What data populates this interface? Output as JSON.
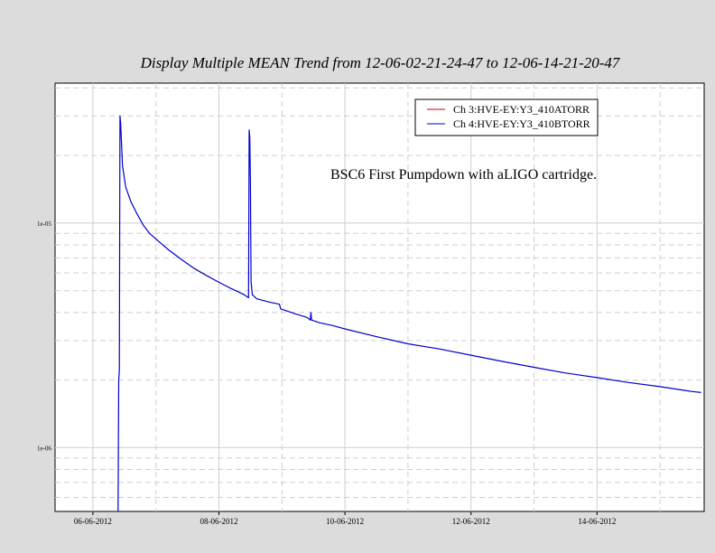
{
  "chart_data": {
    "type": "line",
    "title": "Display Multiple MEAN Trend from 12-06-02-21-24-47 to 12-06-14-21-20-47",
    "annotation": "BSC6 First Pumpdown with aLIGO cartridge.",
    "xlabel": "",
    "ylabel": "",
    "x_ticks": [
      "06-06-2012",
      "08-06-2012",
      "10-06-2012",
      "12-06-2012",
      "14-06-2012"
    ],
    "y_ticks": [
      "1e-05",
      "1e-06"
    ],
    "y_scale": "log",
    "ylim": [
      5.2e-07,
      4.2e-05
    ],
    "xlim_days_from_first_tick": [
      -0.6,
      9.7
    ],
    "legend_position": "top-right",
    "grid": true,
    "series": [
      {
        "name": "Ch 3:HVE-EY:Y3_410ATORR",
        "color": "#cc0000",
        "points": []
      },
      {
        "name": "Ch 4:HVE-EY:Y3_410BTORR",
        "color": "#0000cc",
        "points": [
          [
            0.4,
            5.2e-07
          ],
          [
            0.41,
            2e-06
          ],
          [
            0.42,
            2.2e-06
          ],
          [
            0.43,
            3e-05
          ],
          [
            0.44,
            2.8e-05
          ],
          [
            0.47,
            1.8e-05
          ],
          [
            0.52,
            1.45e-05
          ],
          [
            0.6,
            1.25e-05
          ],
          [
            0.7,
            1.1e-05
          ],
          [
            0.8,
            9.8e-06
          ],
          [
            0.9,
            9e-06
          ],
          [
            1.0,
            8.5e-06
          ],
          [
            1.2,
            7.6e-06
          ],
          [
            1.4,
            6.9e-06
          ],
          [
            1.6,
            6.3e-06
          ],
          [
            1.8,
            5.85e-06
          ],
          [
            2.0,
            5.45e-06
          ],
          [
            2.2,
            5.1e-06
          ],
          [
            2.4,
            4.8e-06
          ],
          [
            2.47,
            4.65e-06
          ],
          [
            2.48,
            2.6e-05
          ],
          [
            2.49,
            2.4e-05
          ],
          [
            2.5,
            1.5e-05
          ],
          [
            2.51,
            5.5e-06
          ],
          [
            2.53,
            4.8e-06
          ],
          [
            2.6,
            4.6e-06
          ],
          [
            2.8,
            4.45e-06
          ],
          [
            2.96,
            4.35e-06
          ],
          [
            2.98,
            4.15e-06
          ],
          [
            3.2,
            3.95e-06
          ],
          [
            3.4,
            3.8e-06
          ],
          [
            3.45,
            3.7e-06
          ],
          [
            3.46,
            4e-06
          ],
          [
            3.47,
            3.7e-06
          ],
          [
            3.6,
            3.6e-06
          ],
          [
            3.8,
            3.5e-06
          ],
          [
            4.0,
            3.38e-06
          ],
          [
            4.5,
            3.12e-06
          ],
          [
            5.0,
            2.9e-06
          ],
          [
            5.5,
            2.75e-06
          ],
          [
            6.0,
            2.58e-06
          ],
          [
            6.5,
            2.42e-06
          ],
          [
            7.0,
            2.28e-06
          ],
          [
            7.5,
            2.15e-06
          ],
          [
            8.0,
            2.05e-06
          ],
          [
            8.5,
            1.95e-06
          ],
          [
            9.0,
            1.87e-06
          ],
          [
            9.5,
            1.78e-06
          ],
          [
            9.65,
            1.76e-06
          ]
        ]
      }
    ]
  }
}
